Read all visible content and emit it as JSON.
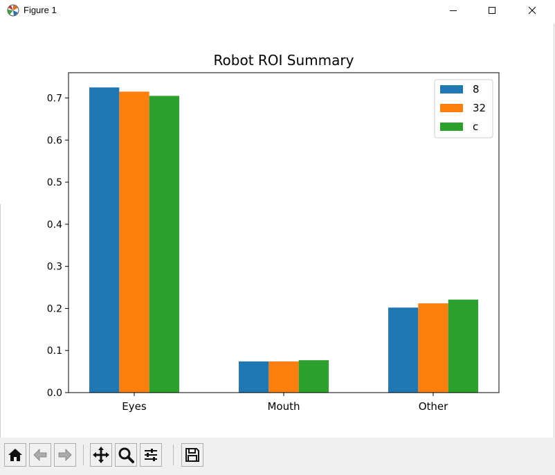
{
  "window": {
    "title": "Figure 1",
    "icon": "matplotlib-logo-icon"
  },
  "toolbar": {
    "buttons": [
      "home-icon",
      "back-arrow-icon",
      "forward-arrow-icon",
      "pan-icon",
      "zoom-icon",
      "configure-subplots-icon",
      "save-icon"
    ]
  },
  "chart_data": {
    "type": "bar",
    "title": "Robot ROI Summary",
    "xlabel": "",
    "ylabel": "",
    "categories": [
      "Eyes",
      "Mouth",
      "Other"
    ],
    "series": [
      {
        "name": "8",
        "color": "#1f77b4",
        "values": [
          0.725,
          0.074,
          0.202
        ]
      },
      {
        "name": "32",
        "color": "#ff7f0e",
        "values": [
          0.715,
          0.074,
          0.212
        ]
      },
      {
        "name": "c",
        "color": "#2ca02c",
        "values": [
          0.705,
          0.077,
          0.221
        ]
      }
    ],
    "ylim": [
      0,
      0.76
    ],
    "yticks": [
      "0.0",
      "0.1",
      "0.2",
      "0.3",
      "0.4",
      "0.5",
      "0.6",
      "0.7"
    ],
    "grid": false,
    "legend_position": "upper right"
  }
}
